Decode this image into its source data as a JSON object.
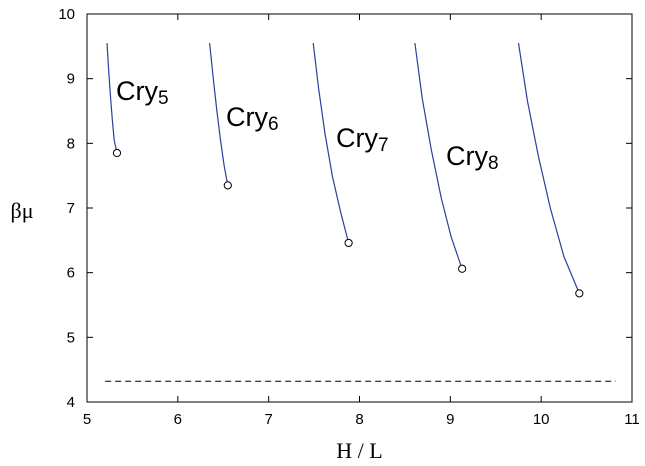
{
  "chart_data": {
    "type": "line",
    "title": "",
    "xlabel": "H / L",
    "ylabel": "βμ",
    "xlim": [
      5,
      11
    ],
    "ylim": [
      4,
      10
    ],
    "xticks": [
      5,
      6,
      7,
      8,
      9,
      10,
      11
    ],
    "yticks": [
      4,
      5,
      6,
      7,
      8,
      9,
      10
    ],
    "grid": false,
    "line_color": "#2b3f9e",
    "series": [
      {
        "name": "Cry5",
        "label_base": "Cry",
        "label_sub": "5",
        "x": [
          5.22,
          5.24,
          5.26,
          5.28,
          5.3,
          5.33
        ],
        "y": [
          9.55,
          9.1,
          8.7,
          8.35,
          8.05,
          7.85
        ],
        "end_marker": [
          5.33,
          7.85
        ]
      },
      {
        "name": "Cry6",
        "label_base": "Cry",
        "label_sub": "6",
        "x": [
          6.35,
          6.39,
          6.43,
          6.47,
          6.51,
          6.55
        ],
        "y": [
          9.55,
          9.0,
          8.5,
          8.05,
          7.65,
          7.35
        ],
        "end_marker": [
          6.55,
          7.35
        ]
      },
      {
        "name": "Cry7",
        "label_base": "Cry",
        "label_sub": "7",
        "x": [
          7.49,
          7.55,
          7.62,
          7.7,
          7.79,
          7.88
        ],
        "y": [
          9.55,
          8.85,
          8.15,
          7.5,
          6.95,
          6.46
        ],
        "end_marker": [
          7.88,
          6.46
        ]
      },
      {
        "name": "Cry8",
        "label_base": "Cry",
        "label_sub": "8",
        "x": [
          8.61,
          8.69,
          8.79,
          8.9,
          9.01,
          9.13
        ],
        "y": [
          9.55,
          8.7,
          7.9,
          7.15,
          6.55,
          6.06
        ],
        "end_marker": [
          9.13,
          6.06
        ]
      },
      {
        "label_base": "",
        "label_sub": "",
        "x": [
          9.75,
          9.85,
          9.97,
          10.1,
          10.25,
          10.42
        ],
        "y": [
          9.55,
          8.65,
          7.8,
          7.0,
          6.25,
          5.68
        ],
        "end_marker": [
          10.42,
          5.68
        ]
      }
    ],
    "reference_line": {
      "style": "dashed",
      "y": 4.32,
      "x_range": [
        5.2,
        10.82
      ]
    }
  }
}
